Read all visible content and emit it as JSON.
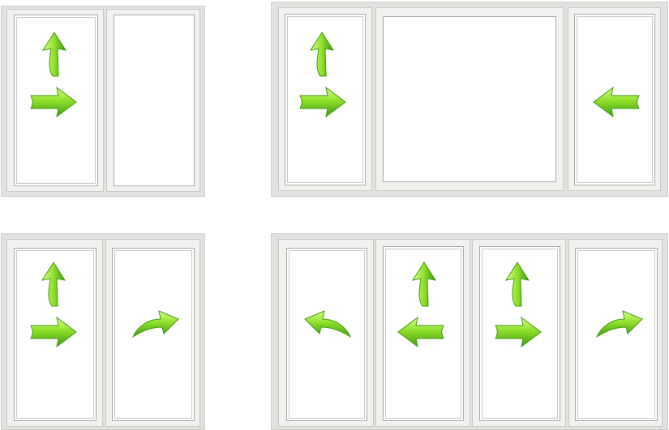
{
  "colors": {
    "frame": "#e2e1df",
    "sash": "#f1f1ef",
    "glass": "#ffffff",
    "arrow_light": "#b6f15a",
    "arrow_mid": "#6fd21c",
    "arrow_dark": "#3f9a10"
  },
  "windows": [
    {
      "name": "two-panel-window-top-left",
      "panels": [
        {
          "opening": "tilt-and-turn",
          "arrows": [
            "arrow-up-icon",
            "arrow-right-icon"
          ]
        },
        {
          "opening": "fixed",
          "arrows": []
        }
      ]
    },
    {
      "name": "three-panel-window-top-right",
      "panels": [
        {
          "opening": "tilt-and-turn",
          "arrows": [
            "arrow-up-icon",
            "arrow-right-icon"
          ]
        },
        {
          "opening": "fixed",
          "arrows": []
        },
        {
          "opening": "turn",
          "arrows": [
            "arrow-left-icon"
          ]
        }
      ]
    },
    {
      "name": "two-panel-window-bottom-left",
      "panels": [
        {
          "opening": "tilt-and-turn",
          "arrows": [
            "arrow-up-icon",
            "arrow-right-icon"
          ]
        },
        {
          "opening": "turn",
          "arrows": [
            "curved-arrow-right-icon"
          ]
        }
      ]
    },
    {
      "name": "four-panel-window-bottom-right",
      "panels": [
        {
          "opening": "turn",
          "arrows": [
            "curved-arrow-left-icon"
          ]
        },
        {
          "opening": "tilt-and-turn",
          "arrows": [
            "arrow-up-icon",
            "arrow-left-icon"
          ]
        },
        {
          "opening": "tilt-and-turn",
          "arrows": [
            "arrow-up-icon",
            "arrow-right-icon"
          ]
        },
        {
          "opening": "turn",
          "arrows": [
            "curved-arrow-right-icon"
          ]
        }
      ]
    }
  ]
}
